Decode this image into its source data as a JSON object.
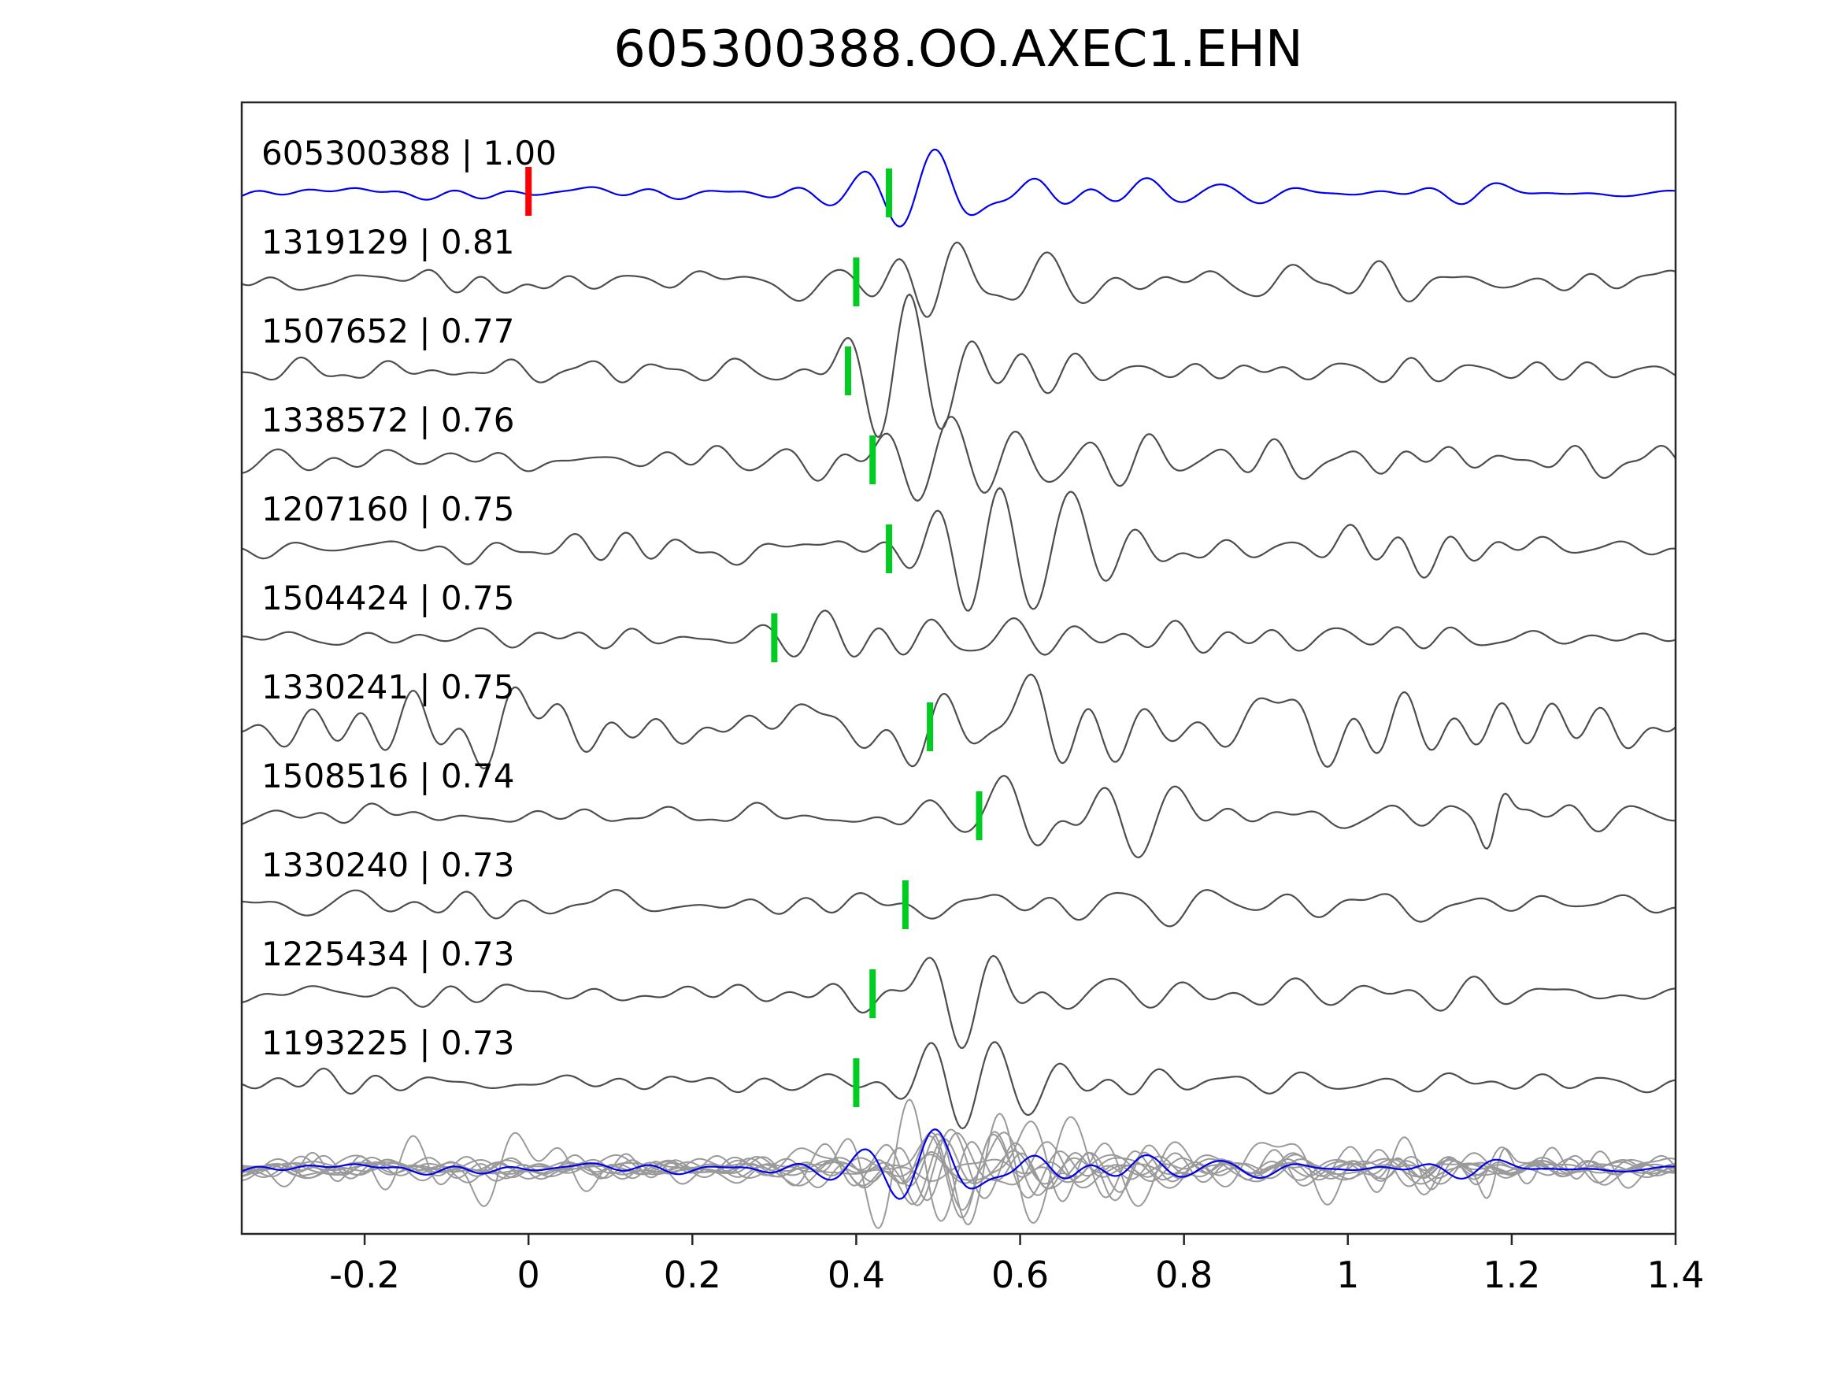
{
  "chart_data": {
    "type": "line",
    "title": "605300388.OO.AXEC1.EHN",
    "xlabel": "",
    "ylabel": "",
    "xlim": [
      -0.35,
      1.4
    ],
    "grid": false,
    "legend": "none",
    "x_ticks": [
      {
        "label": "-0.2",
        "value": -0.2
      },
      {
        "label": "0",
        "value": 0
      },
      {
        "label": "0.2",
        "value": 0.2
      },
      {
        "label": "0.4",
        "value": 0.4
      },
      {
        "label": "0.6",
        "value": 0.6
      },
      {
        "label": "0.8",
        "value": 0.8
      },
      {
        "label": "1",
        "value": 1
      },
      {
        "label": "1.2",
        "value": 1.2
      },
      {
        "label": "1.4",
        "value": 1.4
      }
    ],
    "colors": {
      "reference_trace": "#0000ee",
      "trace": "#4d4d4d",
      "overlay_trace": "#9a9a9a",
      "pick_marker": "#00cc22",
      "reference_marker": "#ff0000",
      "frame": "#262626",
      "text": "#000000"
    },
    "reference_marker_x": 0,
    "traces": [
      {
        "id": "605300388",
        "cc": "1.00",
        "label": "605300388 | 1.00",
        "pick": 0.44,
        "is_reference": true
      },
      {
        "id": "1319129",
        "cc": "0.81",
        "label": "1319129 | 0.81",
        "pick": 0.4
      },
      {
        "id": "1507652",
        "cc": "0.77",
        "label": "1507652 | 0.77",
        "pick": 0.39
      },
      {
        "id": "1338572",
        "cc": "0.76",
        "label": "1338572 | 0.76",
        "pick": 0.42
      },
      {
        "id": "1207160",
        "cc": "0.75",
        "label": "1207160 | 0.75",
        "pick": 0.44
      },
      {
        "id": "1504424",
        "cc": "0.75",
        "label": "1504424 | 0.75",
        "pick": 0.3
      },
      {
        "id": "1330241",
        "cc": "0.75",
        "label": "1330241 | 0.75",
        "pick": 0.49,
        "noise": 1.9
      },
      {
        "id": "1508516",
        "cc": "0.74",
        "label": "1508516 | 0.74",
        "pick": 0.55,
        "spike": 1.18
      },
      {
        "id": "1330240",
        "cc": "0.73",
        "label": "1330240 | 0.73",
        "pick": 0.46
      },
      {
        "id": "1225434",
        "cc": "0.73",
        "label": "1225434 | 0.73",
        "pick": 0.42
      },
      {
        "id": "1193225",
        "cc": "0.73",
        "label": "1193225 | 0.73",
        "pick": 0.4
      }
    ],
    "overlay_row": {
      "description": "All traces overlaid at the bottom row; gray candidates with blue reference on top",
      "includes_reference": true
    }
  }
}
